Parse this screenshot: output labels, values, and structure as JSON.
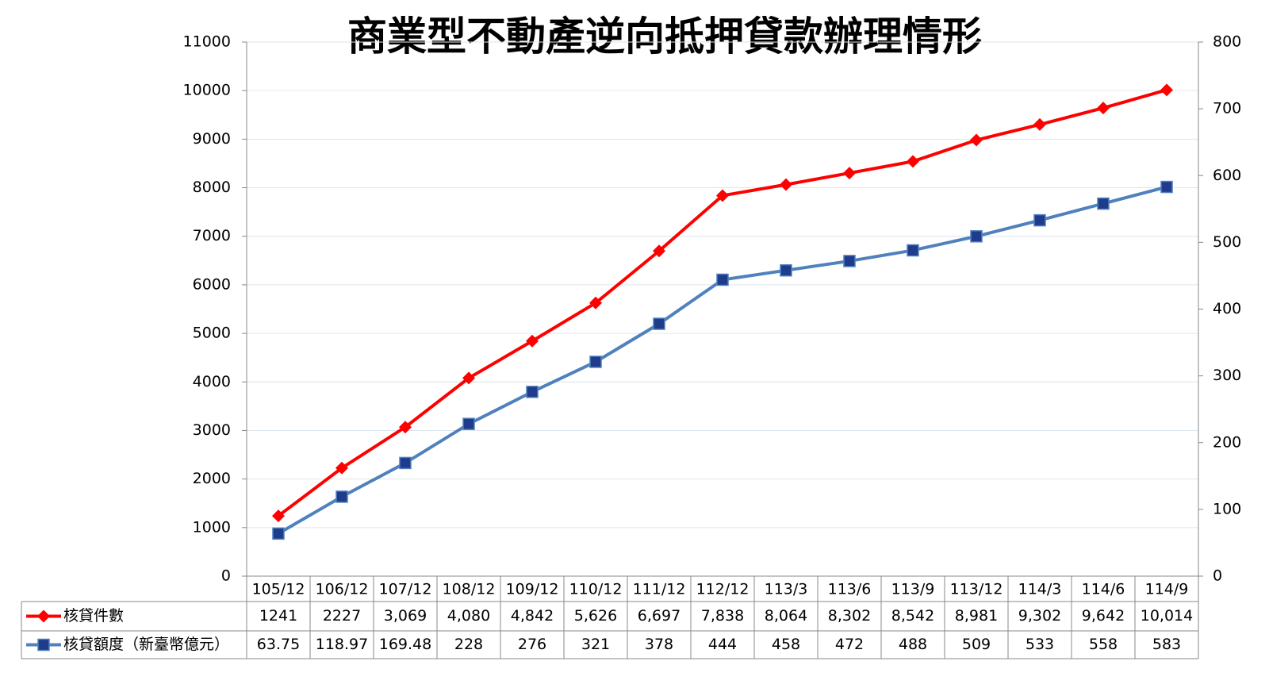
{
  "chart_data": {
    "type": "line",
    "title": "商業型不動產逆向抵押貸款辦理情形",
    "categories": [
      "105/12",
      "106/12",
      "107/12",
      "108/12",
      "109/12",
      "110/12",
      "111/12",
      "112/12",
      "113/3",
      "113/6",
      "113/9",
      "113/12",
      "114/3",
      "114/6",
      "114/9"
    ],
    "series": [
      {
        "name": "核貸件數",
        "color": "#ff0000",
        "marker": "diamond",
        "values": [
          1241,
          2227,
          3069,
          4080,
          4842,
          5626,
          6697,
          7838,
          8064,
          8302,
          8542,
          8981,
          9302,
          9642,
          10014
        ],
        "value_labels": [
          "1241",
          "2227",
          "3,069",
          "4,080",
          "4,842",
          "5,626",
          "6,697",
          "7,838",
          "8,064",
          "8,302",
          "8,542",
          "8,981",
          "9,302",
          "9,642",
          "10,014"
        ]
      },
      {
        "name": "核貸額度（新臺幣億元）",
        "color": "#4f81bd",
        "marker": "square",
        "axis": "y2",
        "values": [
          63.75,
          118.97,
          169.48,
          228,
          276,
          321,
          378,
          444,
          458,
          472,
          488,
          509,
          533,
          558,
          583
        ]
      }
    ],
    "ylim": [
      0,
      11000
    ],
    "yticks": [
      0,
      1000,
      2000,
      3000,
      4000,
      5000,
      6000,
      7000,
      8000,
      9000,
      10000,
      11000
    ],
    "y2lim": [
      0,
      800
    ],
    "y2ticks": [
      0,
      100,
      200,
      300,
      400,
      500,
      600,
      700,
      800
    ],
    "grid": true
  }
}
